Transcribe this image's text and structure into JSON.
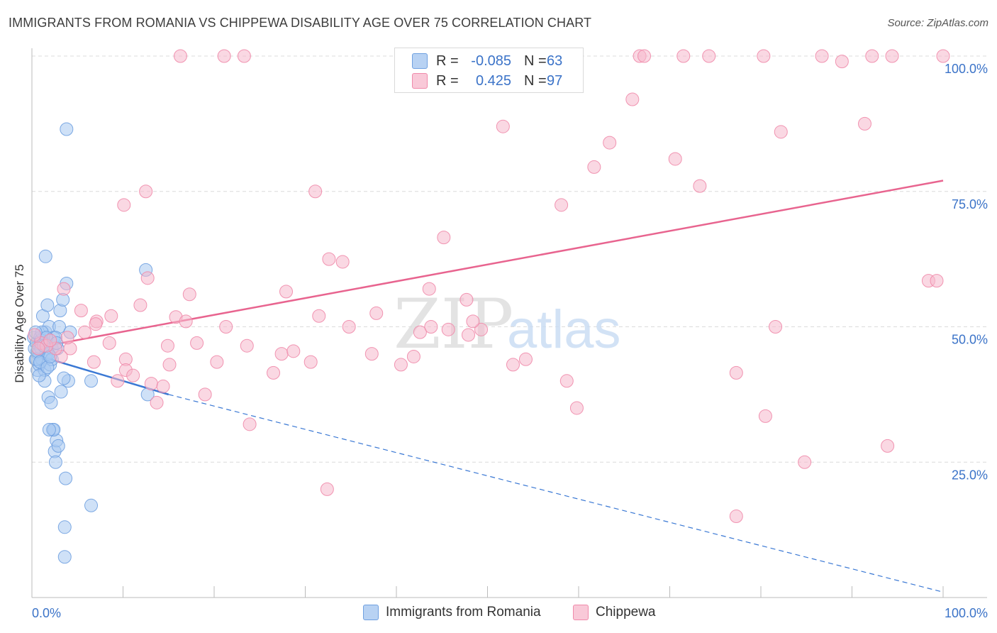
{
  "title": "IMMIGRANTS FROM ROMANIA VS CHIPPEWA DISABILITY AGE OVER 75 CORRELATION CHART",
  "source": "Source: ZipAtlas.com",
  "watermark": {
    "zip": "ZIP",
    "atlas": "atlas"
  },
  "legend": {
    "rows": [
      {
        "r_label": "R =",
        "r_value": "-0.085",
        "n_label": "N =",
        "n_value": "63",
        "color": "#a8c8f0"
      },
      {
        "r_label": "R =",
        "r_value": "0.425",
        "n_label": "N =",
        "n_value": "97",
        "color": "#f6b8cc"
      }
    ]
  },
  "series_legend": [
    {
      "label": "Immigrants from Romania",
      "color": "#a8c8f0"
    },
    {
      "label": "Chippewa",
      "color": "#f6b8cc"
    }
  ],
  "chart_data": {
    "type": "scatter",
    "title": "IMMIGRANTS FROM ROMANIA VS CHIPPEWA DISABILITY AGE OVER 75 CORRELATION CHART",
    "xlabel": "",
    "ylabel": "Disability Age Over 75",
    "xlim": [
      0,
      100
    ],
    "ylim": [
      0,
      100
    ],
    "x_tick_labels": [
      "0.0%",
      "100.0%"
    ],
    "y_tick_labels": [
      "100.0%",
      "75.0%",
      "50.0%",
      "25.0%"
    ],
    "y_ticks": [
      100,
      75,
      50,
      25
    ],
    "grid": true,
    "series": [
      {
        "name": "Immigrants from Romania",
        "color": "#6fa0e0",
        "fill": "#a8c8f0",
        "trend": {
          "x0": 0,
          "y0": 45,
          "x1": 15,
          "y1": 37.5,
          "dash_to_x": 100,
          "dash_to_y": 1,
          "color": "#3a78d4"
        },
        "points": [
          [
            0.2,
            48
          ],
          [
            0.3,
            46
          ],
          [
            0.4,
            44
          ],
          [
            0.5,
            47
          ],
          [
            0.6,
            42
          ],
          [
            0.7,
            45
          ],
          [
            0.8,
            43
          ],
          [
            0.9,
            48
          ],
          [
            1.0,
            46
          ],
          [
            1.1,
            44
          ],
          [
            1.2,
            52
          ],
          [
            1.3,
            47
          ],
          [
            1.4,
            42
          ],
          [
            1.5,
            49
          ],
          [
            1.6,
            45
          ],
          [
            1.7,
            54
          ],
          [
            1.8,
            37
          ],
          [
            1.9,
            50
          ],
          [
            2.0,
            43
          ],
          [
            2.1,
            36
          ],
          [
            2.2,
            46
          ],
          [
            2.3,
            31
          ],
          [
            2.4,
            48
          ],
          [
            2.5,
            27
          ],
          [
            2.6,
            25
          ],
          [
            2.7,
            29
          ],
          [
            2.8,
            46
          ],
          [
            3.0,
            50
          ],
          [
            3.1,
            53
          ],
          [
            3.2,
            38
          ],
          [
            3.4,
            55
          ],
          [
            3.6,
            13
          ],
          [
            3.8,
            58
          ],
          [
            4.0,
            40
          ],
          [
            4.2,
            49
          ],
          [
            1.5,
            63
          ],
          [
            3.7,
            22
          ],
          [
            3.6,
            7.5
          ],
          [
            6.5,
            17
          ],
          [
            3.8,
            86.5
          ],
          [
            12.5,
            60.5
          ],
          [
            12.7,
            37.5
          ],
          [
            6.5,
            40
          ],
          [
            0.5,
            44
          ],
          [
            1.0,
            47.5
          ],
          [
            1.8,
            45
          ],
          [
            2.2,
            44
          ],
          [
            2.6,
            48
          ],
          [
            1.4,
            40
          ],
          [
            0.8,
            41
          ],
          [
            1.1,
            49
          ],
          [
            1.6,
            48
          ],
          [
            2.9,
            28
          ],
          [
            0.6,
            45.5
          ],
          [
            0.9,
            43.5
          ],
          [
            1.3,
            46.5
          ],
          [
            1.7,
            42.5
          ],
          [
            2.0,
            44.5
          ],
          [
            3.5,
            40.5
          ],
          [
            2.7,
            47
          ],
          [
            0.4,
            49
          ],
          [
            2.4,
            31
          ],
          [
            1.9,
            31
          ]
        ]
      },
      {
        "name": "Chippewa",
        "color": "#f08aaa",
        "fill": "#f6b8cc",
        "trend": {
          "x0": 0,
          "y0": 46,
          "x1": 100,
          "y1": 77,
          "color": "#e8648f"
        },
        "points": [
          [
            16.3,
            100
          ],
          [
            21.1,
            100
          ],
          [
            23.3,
            100
          ],
          [
            66.7,
            100
          ],
          [
            67.2,
            100
          ],
          [
            71.5,
            100
          ],
          [
            74.3,
            100
          ],
          [
            80.3,
            100
          ],
          [
            86.7,
            100
          ],
          [
            88.9,
            99
          ],
          [
            92.2,
            100
          ],
          [
            94.4,
            100
          ],
          [
            100,
            100
          ],
          [
            65.9,
            92
          ],
          [
            51.7,
            87
          ],
          [
            91.4,
            87.5
          ],
          [
            82.2,
            86
          ],
          [
            63.4,
            84
          ],
          [
            61.7,
            79.5
          ],
          [
            70.6,
            81
          ],
          [
            12.5,
            75
          ],
          [
            31.1,
            75
          ],
          [
            10.1,
            72.5
          ],
          [
            73.3,
            76
          ],
          [
            58.1,
            72.5
          ],
          [
            45.2,
            66.5
          ],
          [
            32.6,
            62.5
          ],
          [
            34.1,
            62
          ],
          [
            12.7,
            59
          ],
          [
            98.4,
            58.5
          ],
          [
            99.3,
            58.5
          ],
          [
            3.5,
            57
          ],
          [
            17.3,
            56
          ],
          [
            27.9,
            56.5
          ],
          [
            43.6,
            57
          ],
          [
            47.7,
            55
          ],
          [
            11.9,
            54
          ],
          [
            5.4,
            53
          ],
          [
            8.7,
            52
          ],
          [
            15.8,
            51.8
          ],
          [
            31.5,
            52
          ],
          [
            37.8,
            52.5
          ],
          [
            7.1,
            51
          ],
          [
            16.9,
            51
          ],
          [
            21.3,
            50
          ],
          [
            34.8,
            50
          ],
          [
            42.6,
            49
          ],
          [
            45.7,
            49.5
          ],
          [
            49.3,
            49.5
          ],
          [
            81.6,
            50
          ],
          [
            4.2,
            46
          ],
          [
            8.5,
            47
          ],
          [
            14.9,
            46.5
          ],
          [
            18.1,
            47
          ],
          [
            23.6,
            46.5
          ],
          [
            27.4,
            45
          ],
          [
            28.7,
            45.5
          ],
          [
            37.3,
            45
          ],
          [
            41.9,
            44.5
          ],
          [
            47.9,
            48.5
          ],
          [
            52.8,
            43
          ],
          [
            54.2,
            44
          ],
          [
            10.3,
            44
          ],
          [
            6.8,
            43.5
          ],
          [
            15.1,
            43
          ],
          [
            20.3,
            43.5
          ],
          [
            10.3,
            42
          ],
          [
            11.1,
            41
          ],
          [
            26.5,
            41.5
          ],
          [
            9.4,
            40
          ],
          [
            13.1,
            39.5
          ],
          [
            14.4,
            39
          ],
          [
            19.0,
            37.5
          ],
          [
            23.9,
            32
          ],
          [
            59.8,
            35
          ],
          [
            58.7,
            40
          ],
          [
            77.3,
            41.5
          ],
          [
            80.5,
            33.5
          ],
          [
            84.8,
            25
          ],
          [
            93.9,
            28
          ],
          [
            77.3,
            15
          ],
          [
            32.4,
            20
          ],
          [
            13.7,
            36
          ],
          [
            5.8,
            49
          ],
          [
            3.2,
            44.5
          ],
          [
            2.6,
            46
          ],
          [
            1.0,
            47
          ],
          [
            1.6,
            46.5
          ],
          [
            2.0,
            47.5
          ],
          [
            7.0,
            50.5
          ],
          [
            40.5,
            43
          ],
          [
            43.8,
            50
          ],
          [
            48.4,
            51
          ],
          [
            0.3,
            48.5
          ],
          [
            0.7,
            46
          ],
          [
            3.9,
            48
          ],
          [
            30.6,
            43.5
          ]
        ]
      }
    ]
  }
}
